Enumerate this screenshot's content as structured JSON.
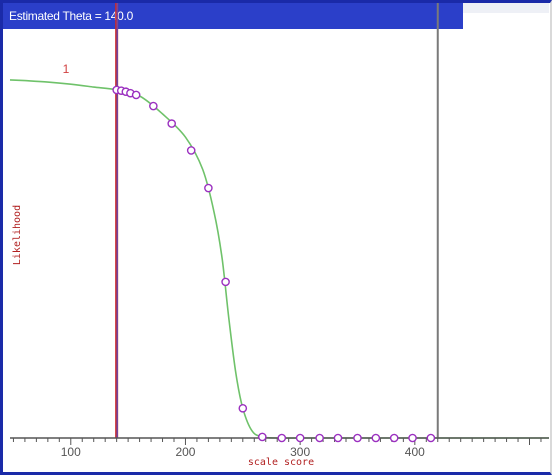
{
  "window": {
    "title": "Estimated Theta = 140.0"
  },
  "chart_data": {
    "type": "line",
    "xlabel": "scale score",
    "ylabel": "Likelihood",
    "xlim": [
      47,
      517
    ],
    "ylim": [
      0,
      1.05
    ],
    "x_ticks": [
      100,
      200,
      300,
      400
    ],
    "y_marker_label": "1",
    "estimated_theta": 140,
    "reference_x": 420,
    "grid": false,
    "legend": "none",
    "colors": {
      "curve": "#6fc26a",
      "point_stroke": "#9b30c0",
      "point_fill": "#ffffff",
      "theta_line": "#cc2a2a",
      "theta_line_inner": "#4455dd",
      "reference_line": "#7a7a7a",
      "axis": "#555555"
    },
    "points": [
      {
        "x": 140,
        "y": 0.972
      },
      {
        "x": 144,
        "y": 0.97
      },
      {
        "x": 148,
        "y": 0.967
      },
      {
        "x": 152,
        "y": 0.963
      },
      {
        "x": 157,
        "y": 0.958
      },
      {
        "x": 172,
        "y": 0.927
      },
      {
        "x": 188,
        "y": 0.878
      },
      {
        "x": 205,
        "y": 0.803
      },
      {
        "x": 220,
        "y": 0.698
      },
      {
        "x": 235,
        "y": 0.436
      },
      {
        "x": 250,
        "y": 0.083
      },
      {
        "x": 267,
        "y": 0.003
      },
      {
        "x": 284,
        "y": 0.0
      },
      {
        "x": 300,
        "y": 0.0
      },
      {
        "x": 317,
        "y": 0.0
      },
      {
        "x": 333,
        "y": 0.0
      },
      {
        "x": 350,
        "y": 0.0
      },
      {
        "x": 366,
        "y": 0.0
      },
      {
        "x": 382,
        "y": 0.0
      },
      {
        "x": 398,
        "y": 0.0
      },
      {
        "x": 414,
        "y": 0.0
      }
    ],
    "curve": {
      "x": [
        47,
        60,
        80,
        100,
        120,
        140,
        160,
        180,
        200,
        215,
        225,
        232,
        238,
        244,
        250,
        258,
        267,
        280,
        300,
        350,
        400,
        450,
        517
      ],
      "y": [
        1.0,
        0.998,
        0.994,
        0.988,
        0.98,
        0.972,
        0.955,
        0.905,
        0.84,
        0.75,
        0.63,
        0.5,
        0.33,
        0.18,
        0.083,
        0.02,
        0.003,
        0.0,
        0.0,
        0.0,
        0.0,
        0.0,
        0.0
      ]
    }
  }
}
